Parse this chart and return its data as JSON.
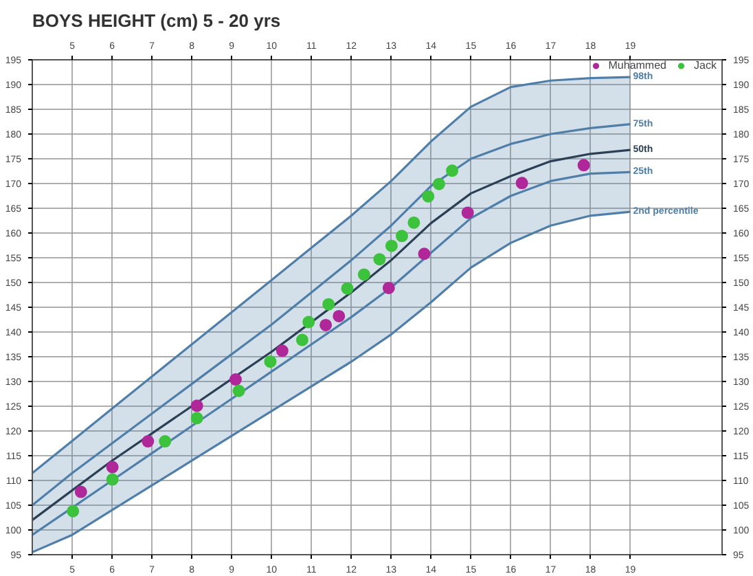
{
  "chart_data": {
    "type": "line",
    "title": "BOYS HEIGHT (cm)  5 - 20 yrs",
    "xlim": [
      4,
      21.3
    ],
    "xticks": [
      5,
      6,
      7,
      8,
      9,
      10,
      11,
      12,
      13,
      14,
      15,
      16,
      17,
      18,
      19
    ],
    "x2lim": [
      4,
      21.3
    ],
    "x2ticks": [
      5,
      6,
      7,
      8,
      9,
      10,
      11,
      12,
      13,
      14,
      15,
      16,
      17,
      18,
      19
    ],
    "ylim": [
      95,
      195
    ],
    "yticks": [
      95,
      100,
      105,
      110,
      115,
      120,
      125,
      130,
      135,
      140,
      145,
      150,
      155,
      160,
      165,
      170,
      175,
      180,
      185,
      190,
      195
    ],
    "y2lim": [
      95,
      195
    ],
    "y2ticks": [
      95,
      100,
      105,
      110,
      115,
      120,
      125,
      130,
      135,
      140,
      145,
      150,
      155,
      160,
      165,
      170,
      175,
      180,
      185,
      190,
      195
    ],
    "grid": true,
    "legend": "top right",
    "line_style": "solid",
    "x": [
      4,
      5,
      6,
      7,
      8,
      9,
      10,
      11,
      12,
      13,
      14,
      15,
      16,
      17,
      18,
      19
    ],
    "series": [
      {
        "name": "98th",
        "color": "#4f7fa8",
        "values": [
          111.5,
          118,
          124.5,
          131,
          137.5,
          144,
          150.5,
          157,
          163.5,
          170.5,
          178.5,
          185.5,
          189.5,
          190.8,
          191.3,
          191.5
        ],
        "lower": [
          95.5,
          99,
          104,
          109,
          114,
          119,
          124,
          129,
          134,
          139.5,
          146,
          153,
          158,
          161.5,
          163.5,
          164.3
        ],
        "upper": [
          111.5,
          118,
          124.5,
          131,
          137.5,
          144,
          150.5,
          157,
          163.5,
          170.5,
          178.5,
          185.5,
          189.5,
          190.8,
          191.3,
          191.5
        ]
      },
      {
        "name": "75th",
        "color": "#4f7fa8",
        "values": [
          105,
          111.5,
          117.5,
          123.5,
          129.5,
          135.5,
          141.5,
          148,
          154.5,
          161.5,
          169.5,
          175,
          178,
          180,
          181.2,
          182
        ]
      },
      {
        "name": "50th",
        "color": "#2b3f55",
        "values": [
          102,
          108,
          114,
          119.5,
          125,
          130.5,
          136,
          142,
          148,
          154.5,
          162,
          168,
          171.5,
          174.5,
          176,
          176.8
        ]
      },
      {
        "name": "25th",
        "color": "#4f7fa8",
        "values": [
          99,
          104.5,
          110,
          115.5,
          121,
          126.5,
          132,
          137.5,
          143,
          149,
          156,
          163,
          167.5,
          170.5,
          172,
          172.3
        ]
      },
      {
        "name": "2nd percentile",
        "color": "#4f7fa8",
        "values": [
          95.5,
          99,
          104,
          109,
          114,
          119,
          124,
          129,
          134,
          139.5,
          146,
          153,
          158,
          161.5,
          163.5,
          164.3
        ]
      },
      {
        "name": "Muhammed",
        "type": "scatter",
        "marker": "circle",
        "color": "#b0279a",
        "x": [
          5.22,
          6.01,
          6.9,
          8.13,
          9.1,
          10.27,
          11.36,
          11.69,
          12.94,
          13.83,
          14.92,
          16.28,
          17.83
        ],
        "values": [
          107.7,
          112.7,
          117.9,
          125.1,
          130.4,
          136.2,
          141.4,
          143.2,
          148.9,
          155.8,
          164.1,
          170.1,
          173.7
        ]
      },
      {
        "name": "Jack",
        "type": "scatter",
        "marker": "circle",
        "color": "#3cc23c",
        "x": [
          5.02,
          6.01,
          7.33,
          8.13,
          9.18,
          9.97,
          10.77,
          10.93,
          11.43,
          11.9,
          12.32,
          12.71,
          13.01,
          13.27,
          13.57,
          13.93,
          14.2,
          14.53
        ],
        "values": [
          103.8,
          110.2,
          117.9,
          122.6,
          128.1,
          134,
          138.4,
          142,
          145.6,
          148.8,
          151.6,
          154.7,
          157.4,
          159.4,
          162.1,
          167.4,
          169.9,
          172.6
        ]
      }
    ]
  }
}
